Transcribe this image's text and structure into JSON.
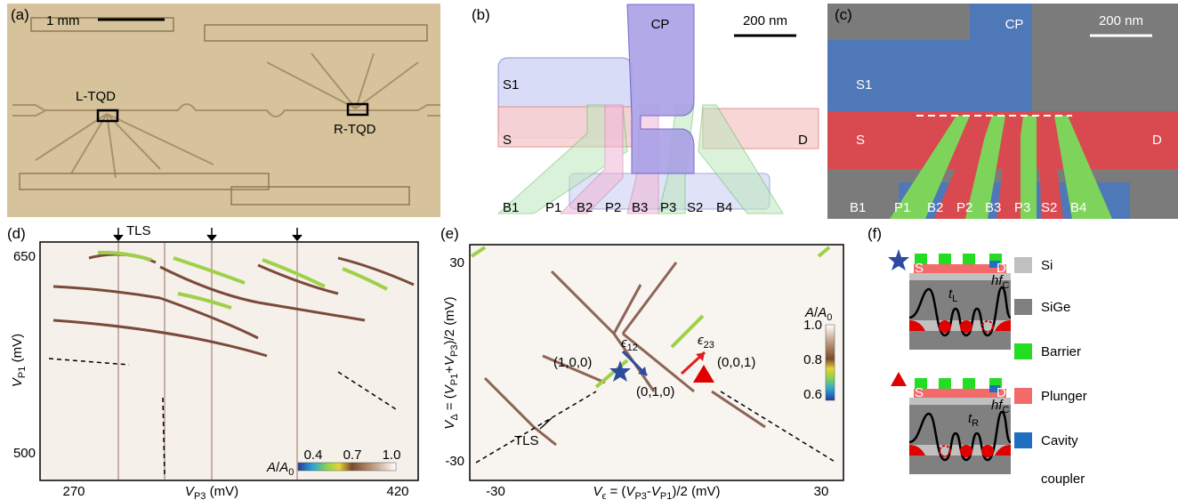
{
  "panel_a": {
    "label": "(a)",
    "scale": "1 mm",
    "left": "L-TQD",
    "right": "R-TQD"
  },
  "panel_b": {
    "label": "(b)",
    "scale": "200 nm",
    "cp": "CP",
    "s1": "S1",
    "s": "S",
    "d": "D",
    "gates": [
      "B1",
      "P1",
      "B2",
      "P2",
      "B3",
      "P3",
      "S2",
      "B4"
    ]
  },
  "panel_c": {
    "label": "(c)",
    "scale": "200 nm",
    "cp": "CP",
    "s1": "S1",
    "s": "S",
    "d": "D",
    "gates": [
      "B1",
      "P1",
      "B2",
      "P2",
      "B3",
      "P3",
      "S2",
      "B4"
    ]
  },
  "panel_d": {
    "label": "(d)",
    "tls": "TLS",
    "yticks": [
      650,
      500
    ],
    "xticks": [
      270,
      420
    ],
    "ylabel": [
      "V",
      "P1",
      " (mV)"
    ],
    "xlabel": [
      "V",
      "P3",
      " (mV)"
    ],
    "colorbar_label": [
      "A",
      "/",
      "A",
      "0"
    ],
    "colorbar_ticks": [
      "0.4",
      "0.7",
      "1.0"
    ]
  },
  "panel_e": {
    "label": "(e)",
    "tls": "TLS",
    "yticks": [
      30,
      -30
    ],
    "xticks": [
      -30,
      30
    ],
    "ylabel": [
      "V",
      "Δ",
      " = (",
      "V",
      "P1",
      "+",
      "V",
      "P3",
      ")/2 (mV)"
    ],
    "xlabel": [
      "V",
      "ϵ",
      " = (",
      "V",
      "P3",
      "-",
      "V",
      "P1",
      ")/2 (mV)"
    ],
    "states": [
      "(1,0,0)",
      "(0,1,0)",
      "(0,0,1)"
    ],
    "eps12": [
      "ϵ",
      "12"
    ],
    "eps23": [
      "ϵ",
      "23"
    ],
    "colorbar_label": [
      "A",
      "/",
      "A",
      "0"
    ],
    "colorbar_ticks": [
      "1.0",
      "0.8",
      "0.6"
    ]
  },
  "panel_f": {
    "label": "(f)",
    "top": {
      "s": "S",
      "d": "D",
      "t": [
        "t",
        "L"
      ],
      "hf": [
        "hf",
        "C"
      ]
    },
    "bottom": {
      "s": "S",
      "d": "D",
      "t": [
        "t",
        "R"
      ],
      "hf": [
        "hf",
        "C"
      ]
    },
    "legend": [
      {
        "name": "Si",
        "color": "#c0c0c0"
      },
      {
        "name": "SiGe",
        "color": "#808080"
      },
      {
        "name": "Barrier",
        "color": "#22dd22"
      },
      {
        "name": "Plunger",
        "color": "#f26a6a"
      },
      {
        "name": "Cavity",
        "color": "#1f6fc0"
      }
    ],
    "legend_extra": "coupler"
  }
}
